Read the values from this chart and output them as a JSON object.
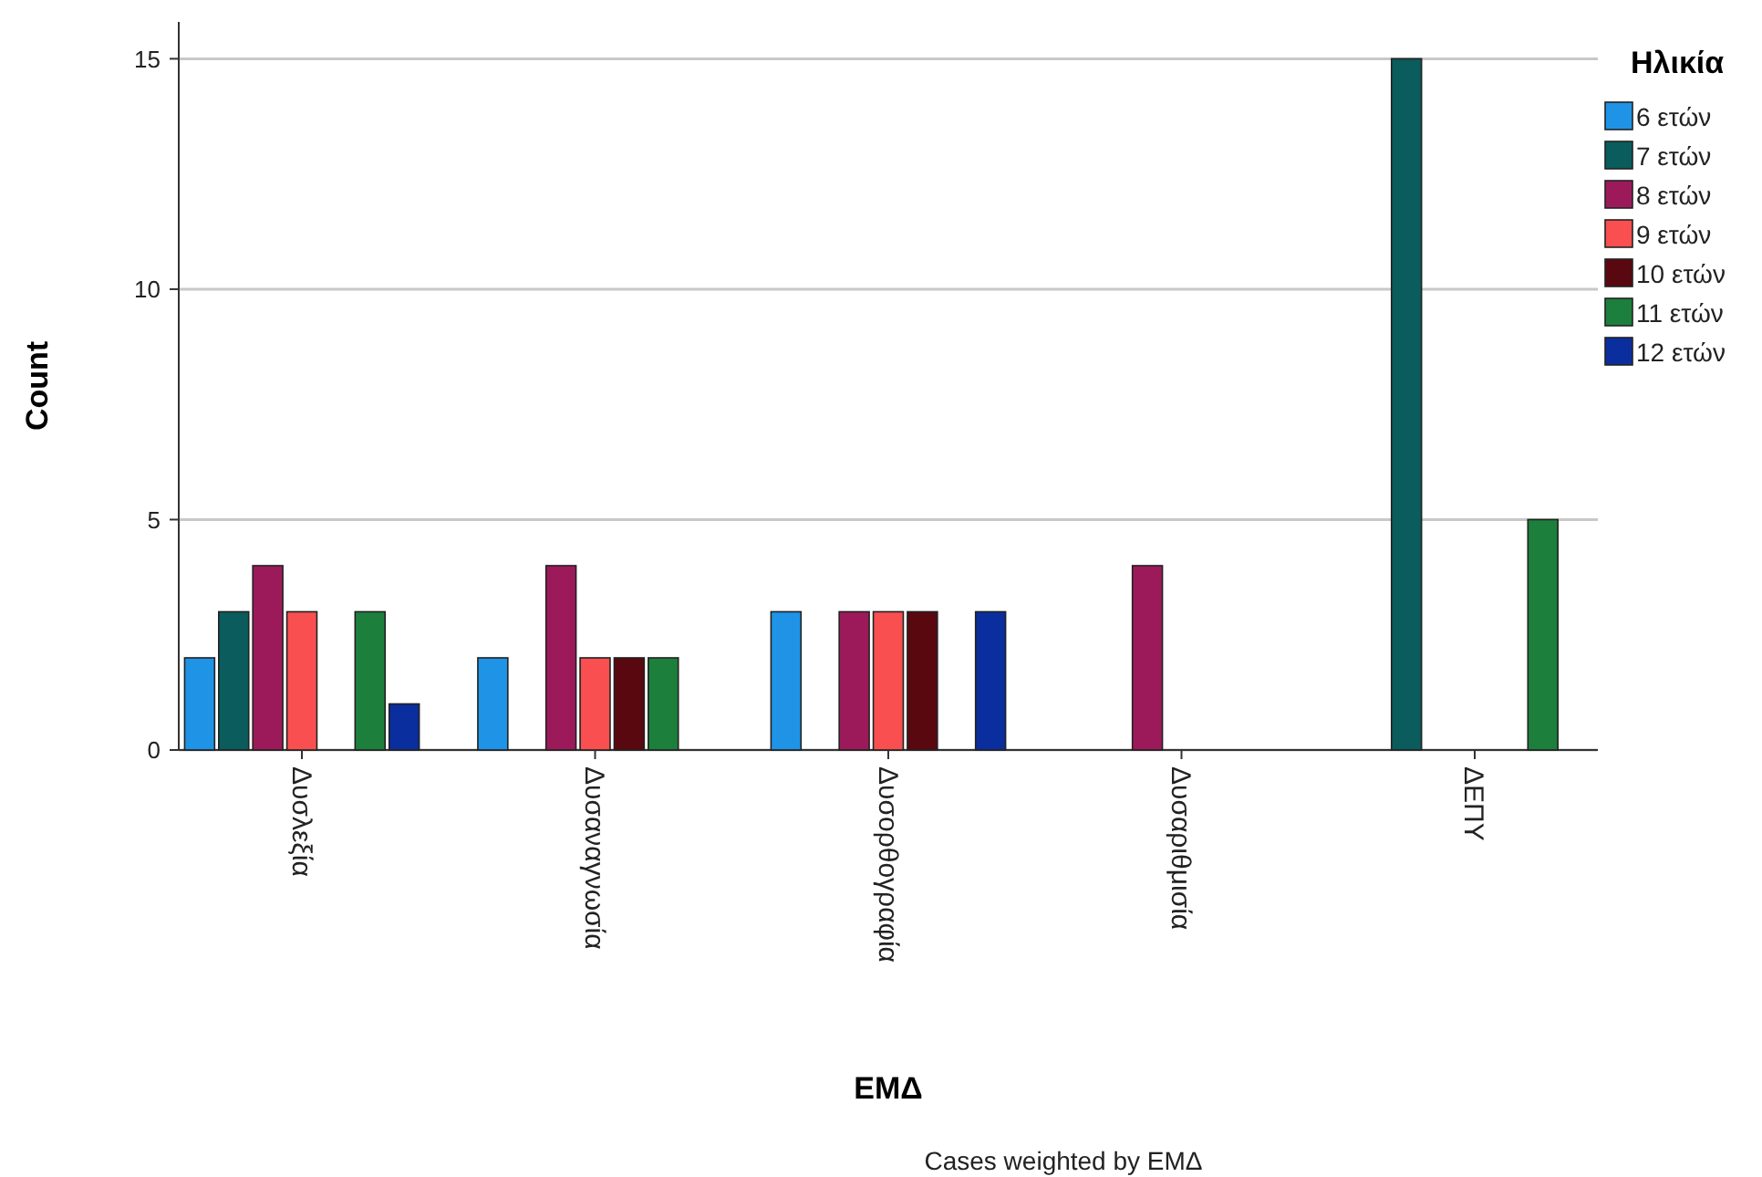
{
  "chart_data": {
    "type": "bar",
    "xlabel": "ΕΜΔ",
    "ylabel": "Count",
    "legend_title": "Ηλικία",
    "legend": "top right",
    "grid": "y",
    "categories": [
      "Δυσλεξία",
      "Δυσαναγνωσία",
      "Δυσορθογραφία",
      "Δυσαριθμισία",
      "ΔΕΠΥ"
    ],
    "ylim": [
      0,
      15.8
    ],
    "yticks": [
      0,
      5,
      10,
      15
    ],
    "series": [
      {
        "name": "6 ετών",
        "color": "#1f93e6",
        "values": [
          2,
          2,
          3,
          0,
          0
        ]
      },
      {
        "name": "7 ετών",
        "color": "#0b5c5c",
        "values": [
          3,
          0,
          0,
          0,
          15
        ]
      },
      {
        "name": "8 ετών",
        "color": "#9c1a5a",
        "values": [
          4,
          4,
          3,
          4,
          0
        ]
      },
      {
        "name": "9 ετών",
        "color": "#f94f50",
        "values": [
          3,
          2,
          3,
          0,
          0
        ]
      },
      {
        "name": "10 ετών",
        "color": "#5a0810",
        "values": [
          0,
          2,
          3,
          0,
          0
        ]
      },
      {
        "name": "11 ετών",
        "color": "#1d7f3c",
        "values": [
          3,
          2,
          0,
          0,
          5
        ]
      },
      {
        "name": "12 ετών",
        "color": "#0a2e9e",
        "values": [
          1,
          0,
          3,
          0,
          0
        ]
      }
    ],
    "annotations": [
      "Cases weighted by ΕΜΔ"
    ]
  }
}
